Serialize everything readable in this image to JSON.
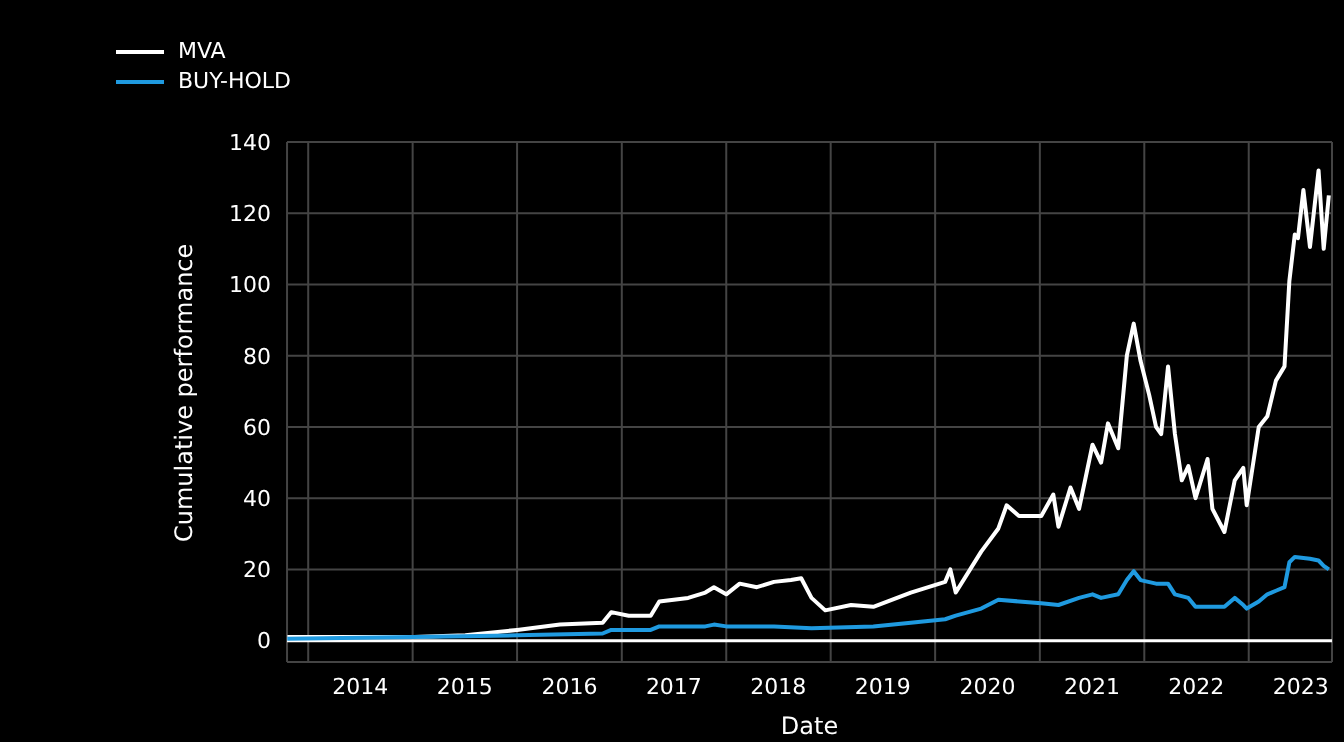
{
  "chart_data": {
    "type": "line",
    "xlabel": "Date",
    "ylabel": "Cumulative performance",
    "legend": "top left",
    "grid": true,
    "xlim": [
      "2013-10-19",
      "2023-10-19"
    ],
    "ylim": [
      -6,
      140
    ],
    "yticks": [
      0,
      20,
      40,
      60,
      80,
      100,
      120,
      140
    ],
    "xticks": [
      {
        "value": "2014-01-01",
        "label": null
      },
      {
        "value": "2014-07-02",
        "label": "2014"
      },
      {
        "value": "2015-01-01",
        "label": null
      },
      {
        "value": "2015-07-02",
        "label": "2015"
      },
      {
        "value": "2016-01-01",
        "label": null
      },
      {
        "value": "2016-07-02",
        "label": "2016"
      },
      {
        "value": "2017-01-01",
        "label": null
      },
      {
        "value": "2017-07-02",
        "label": "2017"
      },
      {
        "value": "2018-01-01",
        "label": null
      },
      {
        "value": "2018-07-02",
        "label": "2018"
      },
      {
        "value": "2019-01-01",
        "label": null
      },
      {
        "value": "2019-07-02",
        "label": "2019"
      },
      {
        "value": "2020-01-01",
        "label": null
      },
      {
        "value": "2020-07-02",
        "label": "2020"
      },
      {
        "value": "2021-01-01",
        "label": null
      },
      {
        "value": "2021-07-02",
        "label": "2021"
      },
      {
        "value": "2022-01-01",
        "label": null
      },
      {
        "value": "2022-07-02",
        "label": "2022"
      },
      {
        "value": "2023-01-01",
        "label": null
      },
      {
        "value": "2023-07-02",
        "label": "2023"
      }
    ],
    "ref_lines": [
      {
        "axis": "y",
        "value": 0,
        "label": null,
        "color": "#ffffff"
      }
    ],
    "series": [
      {
        "name": "MVA",
        "color": "#ffffff",
        "x": [
          "2013-10-20",
          "2015-01-06",
          "2015-07-04",
          "2016-01-01",
          "2016-05-30",
          "2016-10-26",
          "2016-11-25",
          "2017-01-25",
          "2017-04-12",
          "2017-05-12",
          "2017-08-21",
          "2017-10-20",
          "2017-11-19",
          "2018-01-01",
          "2018-02-17",
          "2018-04-18",
          "2018-06-17",
          "2018-08-15",
          "2018-09-20",
          "2018-10-26",
          "2018-12-13",
          "2019-03-13",
          "2019-05-30",
          "2019-10-08",
          "2020-02-05",
          "2020-02-23",
          "2020-03-13",
          "2020-06-10",
          "2020-08-09",
          "2020-09-07",
          "2020-10-20",
          "2021-01-06",
          "2021-02-17",
          "2021-03-07",
          "2021-04-18",
          "2021-05-18",
          "2021-07-04",
          "2021-08-03",
          "2021-08-27",
          "2021-10-02",
          "2021-11-01",
          "2021-11-25",
          "2021-12-19",
          "2022-01-18",
          "2022-02-11",
          "2022-03-01",
          "2022-03-25",
          "2022-04-18",
          "2022-05-12",
          "2022-06-04",
          "2022-06-29",
          "2022-08-10",
          "2022-08-27",
          "2022-10-08",
          "2022-11-13",
          "2022-12-13",
          "2022-12-25",
          "2023-02-05",
          "2023-03-07",
          "2023-04-06",
          "2023-05-06",
          "2023-05-23",
          "2023-06-11",
          "2023-06-22",
          "2023-07-11",
          "2023-08-03",
          "2023-09-02",
          "2023-09-20",
          "2023-10-08"
        ],
        "values": [
          1,
          1,
          1.5,
          3,
          4.5,
          5,
          8,
          7,
          7,
          11,
          12,
          13.5,
          15,
          13,
          16,
          15,
          16.5,
          17,
          17.5,
          12,
          8.5,
          10,
          9.5,
          13.5,
          16.5,
          20,
          13.5,
          25,
          31.5,
          38,
          35,
          35,
          41,
          32,
          43,
          37,
          55,
          50,
          61,
          54,
          80,
          89,
          78.5,
          69,
          60,
          58,
          77,
          58,
          45,
          49,
          40,
          51,
          37,
          30.5,
          45,
          48.5,
          38,
          60,
          63,
          73,
          77,
          101,
          114,
          113,
          126.5,
          110.5,
          132,
          110,
          125
        ]
      },
      {
        "name": "BUY-HOLD",
        "color": "#1f9ae0",
        "x": [
          "2013-10-20",
          "2015-01-06",
          "2016-01-01",
          "2016-10-26",
          "2016-11-25",
          "2017-04-12",
          "2017-05-12",
          "2017-10-20",
          "2017-11-19",
          "2018-01-01",
          "2018-06-17",
          "2018-10-26",
          "2019-05-30",
          "2019-10-08",
          "2020-02-05",
          "2020-03-13",
          "2020-06-10",
          "2020-08-09",
          "2020-10-20",
          "2021-01-06",
          "2021-03-07",
          "2021-05-18",
          "2021-07-04",
          "2021-08-03",
          "2021-10-02",
          "2021-11-01",
          "2021-11-25",
          "2021-12-19",
          "2022-02-11",
          "2022-03-25",
          "2022-04-18",
          "2022-06-04",
          "2022-06-29",
          "2022-08-27",
          "2022-10-08",
          "2022-11-13",
          "2022-12-13",
          "2022-12-25",
          "2023-02-05",
          "2023-03-07",
          "2023-04-06",
          "2023-05-06",
          "2023-05-23",
          "2023-06-11",
          "2023-08-03",
          "2023-09-02",
          "2023-09-20",
          "2023-10-08"
        ],
        "values": [
          0.5,
          1,
          1.5,
          2,
          3,
          3,
          4,
          4,
          4.5,
          4,
          4,
          3.5,
          4,
          5,
          6,
          7,
          9,
          11.5,
          11,
          10.5,
          10,
          12,
          13,
          12,
          13,
          17,
          19.5,
          17,
          16,
          16,
          13,
          12,
          9.5,
          9.5,
          9.5,
          12,
          10,
          9,
          11,
          13,
          14,
          15,
          22,
          23.5,
          23,
          22.5,
          21,
          20
        ]
      }
    ]
  }
}
